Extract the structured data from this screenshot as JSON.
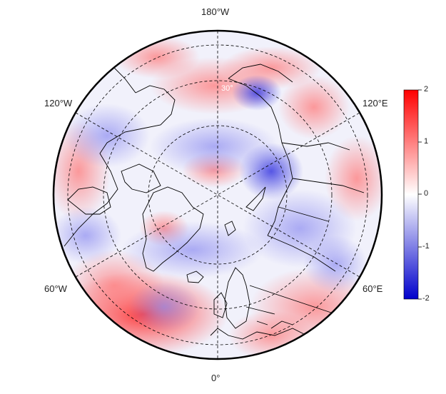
{
  "map": {
    "projection": "north polar stereographic",
    "longitude_labels": {
      "top": "180°W",
      "upper_left": "120°W",
      "upper_right": "120°E",
      "lower_left": "60°W",
      "lower_right": "60°E",
      "bottom": "0°"
    },
    "inner_circle_label": "30°",
    "gridlines": "dashed",
    "colors": {
      "positive": "#ff0000",
      "neutral": "#ffffff",
      "negative": "#0000cc",
      "coastline": "#000000"
    }
  },
  "colorbar": {
    "min": -2,
    "max": 2,
    "tick_labels": [
      "2",
      "1",
      "0",
      "-1",
      "-2"
    ],
    "colors": [
      "#ff0000",
      "#ffffff",
      "#0000cc"
    ]
  }
}
